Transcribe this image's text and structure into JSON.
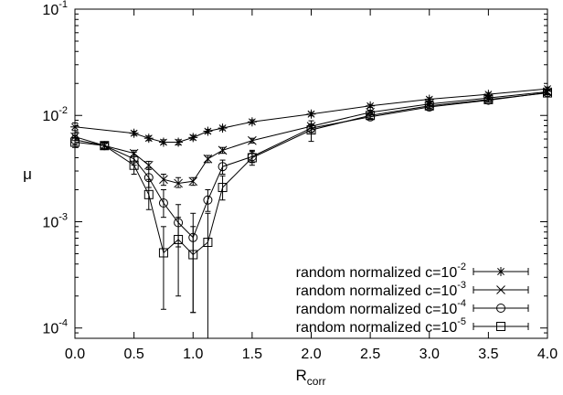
{
  "chart_data": {
    "type": "line",
    "xlabel_base": "R",
    "xlabel_sub": "corr",
    "ylabel": "μ",
    "xlim": [
      0.0,
      4.0
    ],
    "ylim": [
      8e-05,
      0.1
    ],
    "y_scale": "log",
    "grid": false,
    "legend_position": "bottom-right",
    "x_ticks": [
      0.0,
      0.5,
      1.0,
      1.5,
      2.0,
      2.5,
      3.0,
      3.5,
      4.0
    ],
    "x_tick_labels": [
      "0.0",
      "0.5",
      "1.0",
      "1.5",
      "2.0",
      "2.5",
      "3.0",
      "3.5",
      "4.0"
    ],
    "y_ticks": [
      {
        "value": 0.1,
        "base": "10",
        "exp": "-1"
      },
      {
        "value": 0.01,
        "base": "10",
        "exp": "-2"
      },
      {
        "value": 0.001,
        "base": "10",
        "exp": "-3"
      },
      {
        "value": 0.0001,
        "base": "10",
        "exp": "-4"
      }
    ],
    "series": [
      {
        "label_base": "random normalized c=10",
        "label_exp": "-2",
        "marker": "asterisk",
        "points": [
          {
            "x": 0.0,
            "y": 0.0078,
            "lo": 0.0072,
            "hi": 0.0085
          },
          {
            "x": 0.5,
            "y": 0.0068,
            "lo": 0.0065,
            "hi": 0.0071
          },
          {
            "x": 0.625,
            "y": 0.0061,
            "lo": 0.0058,
            "hi": 0.0064
          },
          {
            "x": 0.75,
            "y": 0.0056,
            "lo": 0.0054,
            "hi": 0.0059
          },
          {
            "x": 0.875,
            "y": 0.0056,
            "lo": 0.0053,
            "hi": 0.0059
          },
          {
            "x": 1.0,
            "y": 0.0062,
            "lo": 0.0059,
            "hi": 0.0065
          },
          {
            "x": 1.125,
            "y": 0.0071,
            "lo": 0.0068,
            "hi": 0.0074
          },
          {
            "x": 1.25,
            "y": 0.0076,
            "lo": 0.0073,
            "hi": 0.0079
          },
          {
            "x": 1.5,
            "y": 0.0087,
            "lo": 0.0084,
            "hi": 0.0091
          },
          {
            "x": 2.0,
            "y": 0.0103,
            "lo": 0.0099,
            "hi": 0.0107
          },
          {
            "x": 2.5,
            "y": 0.0123,
            "lo": 0.0119,
            "hi": 0.0127
          },
          {
            "x": 3.0,
            "y": 0.0142,
            "lo": 0.0137,
            "hi": 0.0147
          },
          {
            "x": 3.5,
            "y": 0.0158,
            "lo": 0.0152,
            "hi": 0.0164
          },
          {
            "x": 4.0,
            "y": 0.0178,
            "lo": 0.0171,
            "hi": 0.0185
          }
        ]
      },
      {
        "label_base": "random normalized c=10",
        "label_exp": "-3",
        "marker": "cross",
        "points": [
          {
            "x": 0.0,
            "y": 0.0063,
            "lo": 0.0058,
            "hi": 0.0068
          },
          {
            "x": 0.25,
            "y": 0.0052,
            "lo": 0.0049,
            "hi": 0.0055
          },
          {
            "x": 0.5,
            "y": 0.0044,
            "lo": 0.0041,
            "hi": 0.0047
          },
          {
            "x": 0.625,
            "y": 0.0034,
            "lo": 0.0031,
            "hi": 0.0037
          },
          {
            "x": 0.75,
            "y": 0.0025,
            "lo": 0.0022,
            "hi": 0.0028
          },
          {
            "x": 0.875,
            "y": 0.0023,
            "lo": 0.0021,
            "hi": 0.0026
          },
          {
            "x": 1.0,
            "y": 0.0024,
            "lo": 0.0022,
            "hi": 0.0026
          },
          {
            "x": 1.125,
            "y": 0.0039,
            "lo": 0.0036,
            "hi": 0.0042
          },
          {
            "x": 1.25,
            "y": 0.0047,
            "lo": 0.0044,
            "hi": 0.005
          },
          {
            "x": 1.5,
            "y": 0.0058,
            "lo": 0.0055,
            "hi": 0.0061
          },
          {
            "x": 2.0,
            "y": 0.0079,
            "lo": 0.0075,
            "hi": 0.0083
          },
          {
            "x": 2.5,
            "y": 0.0107,
            "lo": 0.0102,
            "hi": 0.0112
          },
          {
            "x": 3.0,
            "y": 0.0128,
            "lo": 0.0123,
            "hi": 0.0133
          },
          {
            "x": 3.5,
            "y": 0.0146,
            "lo": 0.014,
            "hi": 0.0152
          },
          {
            "x": 4.0,
            "y": 0.0167,
            "lo": 0.016,
            "hi": 0.0174
          }
        ]
      },
      {
        "label_base": "random normalized c=10",
        "label_exp": "-4",
        "marker": "circle",
        "points": [
          {
            "x": 0.0,
            "y": 0.0059,
            "lo": 0.0053,
            "hi": 0.0065
          },
          {
            "x": 0.25,
            "y": 0.0052,
            "lo": 0.0048,
            "hi": 0.0056
          },
          {
            "x": 0.5,
            "y": 0.0039,
            "lo": 0.0034,
            "hi": 0.0045
          },
          {
            "x": 0.625,
            "y": 0.0026,
            "lo": 0.0021,
            "hi": 0.0032
          },
          {
            "x": 0.75,
            "y": 0.0015,
            "lo": 0.0011,
            "hi": 0.002
          },
          {
            "x": 0.875,
            "y": 0.00098,
            "lo": 0.00058,
            "hi": 0.00145
          },
          {
            "x": 1.0,
            "y": 0.00071,
            "lo": 0.00014,
            "hi": 0.0012
          },
          {
            "x": 1.125,
            "y": 0.0016,
            "lo": 0.00125,
            "hi": 0.002
          },
          {
            "x": 1.25,
            "y": 0.0033,
            "lo": 0.0028,
            "hi": 0.0038
          },
          {
            "x": 1.5,
            "y": 0.0041,
            "lo": 0.0036,
            "hi": 0.0047
          },
          {
            "x": 2.0,
            "y": 0.0076,
            "lo": 0.0069,
            "hi": 0.0083
          },
          {
            "x": 2.5,
            "y": 0.0097,
            "lo": 0.0092,
            "hi": 0.0102
          },
          {
            "x": 3.0,
            "y": 0.012,
            "lo": 0.0115,
            "hi": 0.0125
          },
          {
            "x": 3.5,
            "y": 0.0139,
            "lo": 0.0133,
            "hi": 0.0145
          },
          {
            "x": 4.0,
            "y": 0.0164,
            "lo": 0.0157,
            "hi": 0.0171
          }
        ]
      },
      {
        "label_base": "random normalized c=10",
        "label_exp": "-5",
        "marker": "square",
        "points": [
          {
            "x": 0.0,
            "y": 0.0056,
            "lo": 0.005,
            "hi": 0.0062
          },
          {
            "x": 0.25,
            "y": 0.0052,
            "lo": 0.0048,
            "hi": 0.0056
          },
          {
            "x": 0.5,
            "y": 0.0034,
            "lo": 0.0028,
            "hi": 0.0041
          },
          {
            "x": 0.625,
            "y": 0.0018,
            "lo": 0.0013,
            "hi": 0.0025
          },
          {
            "x": 0.75,
            "y": 0.00051,
            "lo": 0.00015,
            "hi": 0.0009
          },
          {
            "x": 0.875,
            "y": 0.00068,
            "lo": 0.0002,
            "hi": 0.0011
          },
          {
            "x": 1.0,
            "y": 0.00049,
            "lo": 0.00014,
            "hi": 0.0009
          },
          {
            "x": 1.125,
            "y": 0.00064,
            "lo": 8e-05,
            "hi": 0.0012
          },
          {
            "x": 1.25,
            "y": 0.0021,
            "lo": 0.0016,
            "hi": 0.0027
          },
          {
            "x": 1.5,
            "y": 0.004,
            "lo": 0.0034,
            "hi": 0.0046
          },
          {
            "x": 2.0,
            "y": 0.0073,
            "lo": 0.0057,
            "hi": 0.0089
          },
          {
            "x": 2.5,
            "y": 0.01,
            "lo": 0.0094,
            "hi": 0.0106
          },
          {
            "x": 3.0,
            "y": 0.0123,
            "lo": 0.0117,
            "hi": 0.0129
          },
          {
            "x": 3.5,
            "y": 0.0141,
            "lo": 0.0135,
            "hi": 0.0147
          },
          {
            "x": 4.0,
            "y": 0.0163,
            "lo": 0.0156,
            "hi": 0.017
          }
        ]
      }
    ]
  }
}
